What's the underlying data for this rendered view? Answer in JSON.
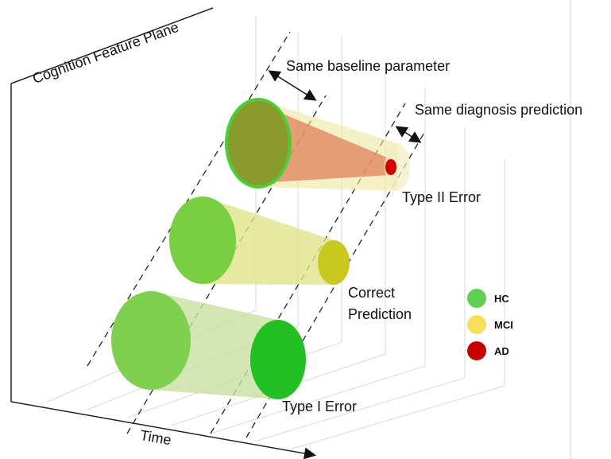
{
  "axes": {
    "plane_label": "Cognition Feature Plane",
    "time_label": "Time"
  },
  "annotations": {
    "baseline": "Same baseline parameter",
    "diagnosis": "Same diagnosis prediction",
    "type2": "Type II Error",
    "correct": [
      "Correct",
      "Prediction"
    ],
    "type1": "Type I Error"
  },
  "legend": [
    {
      "label": "HC"
    },
    {
      "label": "MCI"
    },
    {
      "label": "AD"
    }
  ]
}
